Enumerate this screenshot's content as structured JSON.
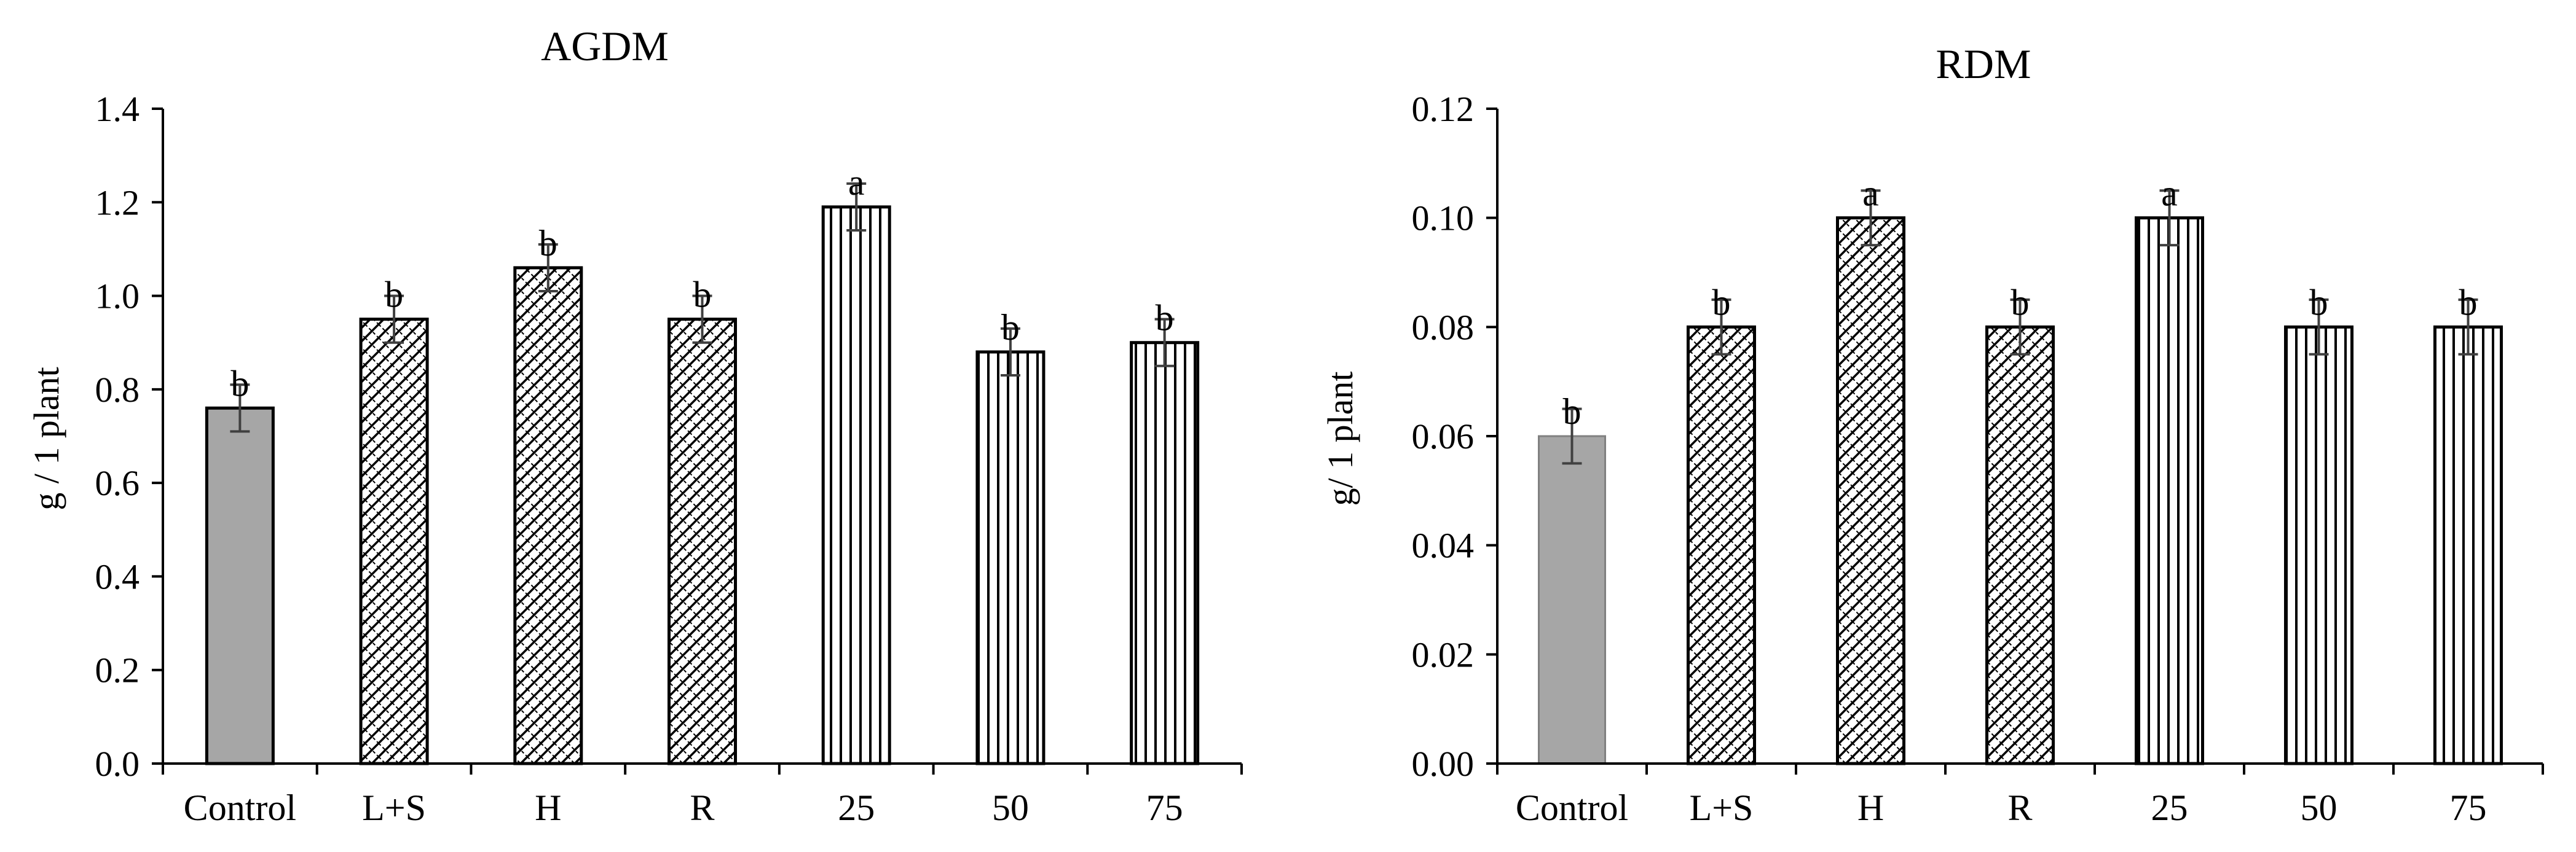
{
  "chart_data": [
    {
      "type": "bar",
      "title": "AGDM",
      "ylabel": "g / 1 plant",
      "xlabel": "",
      "ylim": [
        0,
        1.4
      ],
      "ytick_step": 0.2,
      "ytick_labels": [
        "0.0",
        "0.2",
        "0.4",
        "0.6",
        "0.8",
        "1.0",
        "1.2",
        "1.4"
      ],
      "categories": [
        "Control",
        "L+S",
        "H",
        "R",
        "25",
        "50",
        "75"
      ],
      "values": [
        0.76,
        0.95,
        1.06,
        0.95,
        1.19,
        0.88,
        0.9
      ],
      "errors": [
        0.05,
        0.05,
        0.05,
        0.05,
        0.05,
        0.05,
        0.05
      ],
      "significance": [
        "b",
        "b",
        "b",
        "b",
        "a",
        "b",
        "b"
      ],
      "patterns": [
        "solid",
        "crosshatch",
        "crosshatch",
        "crosshatch",
        "vlines",
        "vlines",
        "vlines"
      ]
    },
    {
      "type": "bar",
      "title": "RDM",
      "ylabel": "g/ 1 plant",
      "xlabel": "",
      "ylim": [
        0,
        0.12
      ],
      "ytick_step": 0.02,
      "ytick_labels": [
        "0.00",
        "0.02",
        "0.04",
        "0.06",
        "0.08",
        "0.10",
        "0.12"
      ],
      "categories": [
        "Control",
        "L+S",
        "H",
        "R",
        "25",
        "50",
        "75"
      ],
      "values": [
        0.06,
        0.08,
        0.1,
        0.08,
        0.1,
        0.08,
        0.08
      ],
      "errors": [
        0.005,
        0.005,
        0.005,
        0.005,
        0.005,
        0.005,
        0.005
      ],
      "significance": [
        "b",
        "b",
        "a",
        "b",
        "a",
        "b",
        "b"
      ],
      "patterns": [
        "solid",
        "crosshatch",
        "crosshatch",
        "crosshatch",
        "vlines",
        "vlines",
        "vlines"
      ]
    }
  ],
  "colors": {
    "control_fill": "#a6a6a6",
    "pattern_bg": "#ffffff",
    "stroke": "#000000",
    "axis": "#000000",
    "error_bar": "#404040"
  }
}
